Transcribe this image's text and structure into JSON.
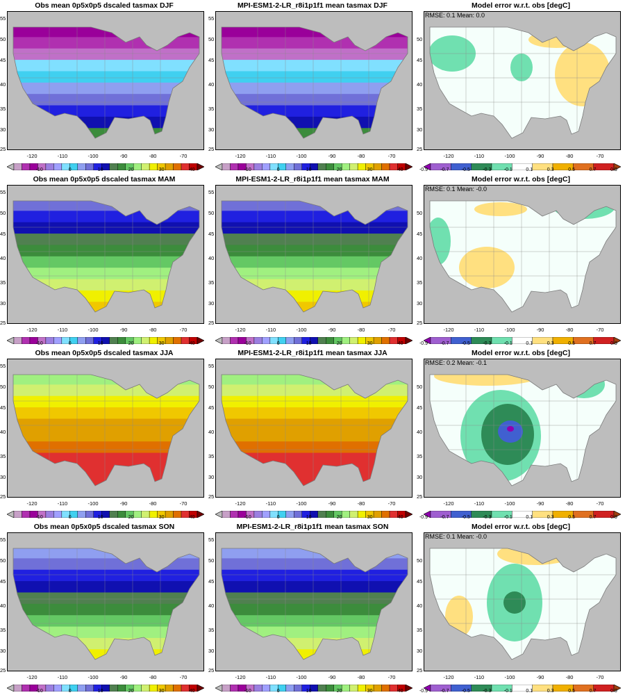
{
  "figure": {
    "rows": [
      {
        "season": "DJF",
        "obs_title": "Obs mean 0p5x0p5 dscaled tasmax DJF",
        "model_title": "MPI-ESM1-2-LR_r8i1p1f1 mean tasmax DJF",
        "err_title": "Model error w.r.t. obs [degC]",
        "stats": "RMSE: 0.1  Mean: 0.0"
      },
      {
        "season": "MAM",
        "obs_title": "Obs mean 0p5x0p5 dscaled tasmax MAM",
        "model_title": "MPI-ESM1-2-LR_r8i1p1f1 mean tasmax MAM",
        "err_title": "Model error w.r.t. obs [degC]",
        "stats": "RMSE: 0.1  Mean: -0.0"
      },
      {
        "season": "JJA",
        "obs_title": "Obs mean 0p5x0p5 dscaled tasmax JJA",
        "model_title": "MPI-ESM1-2-LR_r8i1p1f1 mean tasmax JJA",
        "err_title": "Model error w.r.t. obs [degC]",
        "stats": "RMSE: 0.2  Mean: -0.1"
      },
      {
        "season": "SON",
        "obs_title": "Obs mean 0p5x0p5 dscaled tasmax SON",
        "model_title": "MPI-ESM1-2-LR_r8i1p1f1 mean tasmax SON",
        "err_title": "Model error w.r.t. obs [degC]",
        "stats": "RMSE: 0.1  Mean: -0.0"
      }
    ]
  },
  "axes": {
    "lat_ticks": [
      "55",
      "50",
      "45",
      "40",
      "35",
      "30",
      "25"
    ],
    "lon_ticks": [
      "-120",
      "-110",
      "-100",
      "-90",
      "-80",
      "-70"
    ]
  },
  "colorbars": {
    "temperature": {
      "labels": [
        "-10",
        "0",
        "10",
        "20",
        "30",
        "40"
      ],
      "colors": [
        "#bdbdbd",
        "#c7a0c7",
        "#b030b0",
        "#9a009a",
        "#c070c8",
        "#9b7fe0",
        "#a0a0ff",
        "#80e0ff",
        "#40d0f0",
        "#8f9ff0",
        "#7070d8",
        "#2020e0",
        "#1010b0",
        "#508050",
        "#3c8c3c",
        "#64c864",
        "#a0f080",
        "#d0f070",
        "#f0f000",
        "#f0c800",
        "#e0a000",
        "#e07000",
        "#e03030",
        "#c00000",
        "#700000"
      ]
    },
    "error": {
      "labels": [
        "-0.9",
        "-0.7",
        "-0.5",
        "-0.3",
        "-0.1",
        "0.1",
        "0.3",
        "0.5",
        "0.7",
        "0.9"
      ],
      "colors": [
        "#9000b0",
        "#9f5fd0",
        "#4060d0",
        "#2e8b57",
        "#70e0b0",
        "#ffffff",
        "#ffe080",
        "#f0b000",
        "#e07020",
        "#d02020",
        "#a04010"
      ]
    }
  }
}
